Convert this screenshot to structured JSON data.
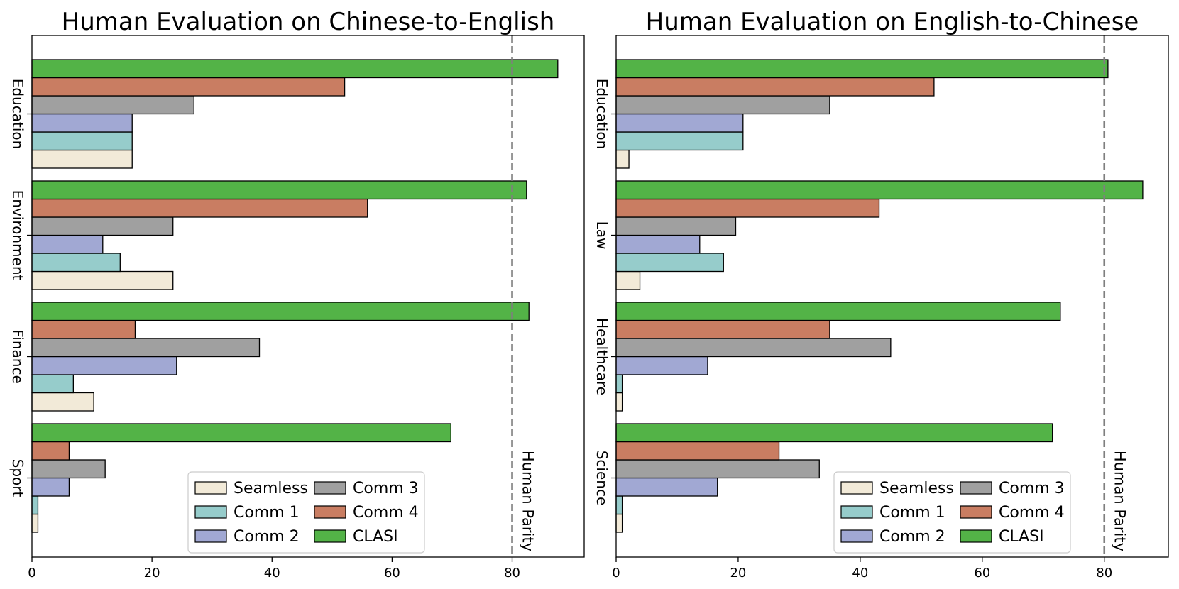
{
  "chart_data": [
    {
      "type": "bar",
      "orientation": "horizontal",
      "title": "Human Evaluation on Chinese-to-English",
      "xlabel": "",
      "ylabel": "",
      "xlim": [
        0,
        92
      ],
      "xticks": [
        "0",
        "20",
        "40",
        "60",
        "80"
      ],
      "categories": [
        "Education",
        "Environment",
        "Finance",
        "Sport"
      ],
      "series": [
        {
          "name": "Seamless",
          "color": "#f2ead8",
          "values": [
            16.7,
            23.5,
            10.3,
            1.0
          ]
        },
        {
          "name": "Comm 1",
          "color": "#96cccb",
          "values": [
            16.7,
            14.7,
            6.9,
            1.0
          ]
        },
        {
          "name": "Comm 2",
          "color": "#a1a8d3",
          "values": [
            16.7,
            11.8,
            24.1,
            6.2
          ]
        },
        {
          "name": "Comm 3",
          "color": "#a0a0a0",
          "values": [
            27.0,
            23.5,
            37.9,
            12.2
          ]
        },
        {
          "name": "Comm 4",
          "color": "#c97d62",
          "values": [
            52.1,
            55.9,
            17.2,
            6.2
          ]
        },
        {
          "name": "CLASI",
          "color": "#53b347",
          "values": [
            87.6,
            82.4,
            82.8,
            69.8
          ]
        }
      ],
      "reference_line": {
        "value": 80,
        "label": "Human Parity"
      },
      "legend": {
        "position": "lower-center",
        "columns": 2
      }
    },
    {
      "type": "bar",
      "orientation": "horizontal",
      "title": "Human Evaluation on English-to-Chinese",
      "xlabel": "",
      "ylabel": "",
      "xlim": [
        0,
        90.5
      ],
      "xticks": [
        "0",
        "20",
        "40",
        "60",
        "80"
      ],
      "categories": [
        "Education",
        "Law",
        "Healthcare",
        "Science"
      ],
      "series": [
        {
          "name": "Seamless",
          "color": "#f2ead8",
          "values": [
            2.1,
            3.9,
            1.0,
            1.0
          ]
        },
        {
          "name": "Comm 1",
          "color": "#96cccb",
          "values": [
            20.8,
            17.6,
            1.0,
            1.0
          ]
        },
        {
          "name": "Comm 2",
          "color": "#a1a8d3",
          "values": [
            20.8,
            13.7,
            15.0,
            16.6
          ]
        },
        {
          "name": "Comm 3",
          "color": "#a0a0a0",
          "values": [
            35.0,
            19.6,
            45.0,
            33.3
          ]
        },
        {
          "name": "Comm 4",
          "color": "#c97d62",
          "values": [
            52.1,
            43.1,
            35.0,
            26.7
          ]
        },
        {
          "name": "CLASI",
          "color": "#53b347",
          "values": [
            80.6,
            86.3,
            72.8,
            71.5
          ]
        }
      ],
      "reference_line": {
        "value": 80,
        "label": "Human Parity"
      },
      "legend": {
        "position": "lower-right",
        "columns": 2
      }
    }
  ]
}
